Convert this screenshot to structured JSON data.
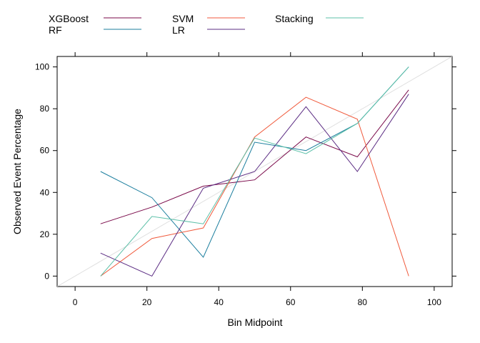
{
  "chart_data": {
    "type": "line",
    "xlabel": "Bin Midpoint",
    "ylabel": "Observed Event Percentage",
    "xlim": [
      -5,
      105
    ],
    "ylim": [
      -5,
      105
    ],
    "xticks": [
      0,
      20,
      40,
      60,
      80,
      100
    ],
    "yticks": [
      0,
      20,
      40,
      60,
      80,
      100
    ],
    "xtick_labels": [
      "0",
      "20",
      "40",
      "60",
      "80",
      "100"
    ],
    "ytick_labels": [
      "0",
      "20",
      "40",
      "60",
      "80",
      "100"
    ],
    "reference_line": {
      "from": [
        -5,
        -5
      ],
      "to": [
        105,
        105
      ],
      "color": "#e0e0e0"
    },
    "legend_position": "top",
    "x": [
      7.1,
      21.4,
      35.7,
      50,
      64.3,
      78.6,
      92.9
    ],
    "series": [
      {
        "name": "XGBoost",
        "color": "#7a0a4a",
        "values": [
          25,
          33,
          43,
          46,
          66.5,
          57,
          89
        ]
      },
      {
        "name": "RF",
        "color": "#1b7e9e",
        "values": [
          50,
          37.5,
          9,
          64,
          60,
          73,
          100
        ]
      },
      {
        "name": "SVM",
        "color": "#f05a3c",
        "values": [
          0,
          18,
          23,
          66.5,
          85.5,
          75,
          0
        ]
      },
      {
        "name": "LR",
        "color": "#5b2c83",
        "values": [
          11,
          0,
          42,
          50,
          81,
          50,
          87
        ]
      },
      {
        "name": "Stacking",
        "color": "#5cc0a8",
        "values": [
          0,
          28.5,
          25,
          66,
          58.5,
          73,
          100
        ]
      }
    ]
  }
}
